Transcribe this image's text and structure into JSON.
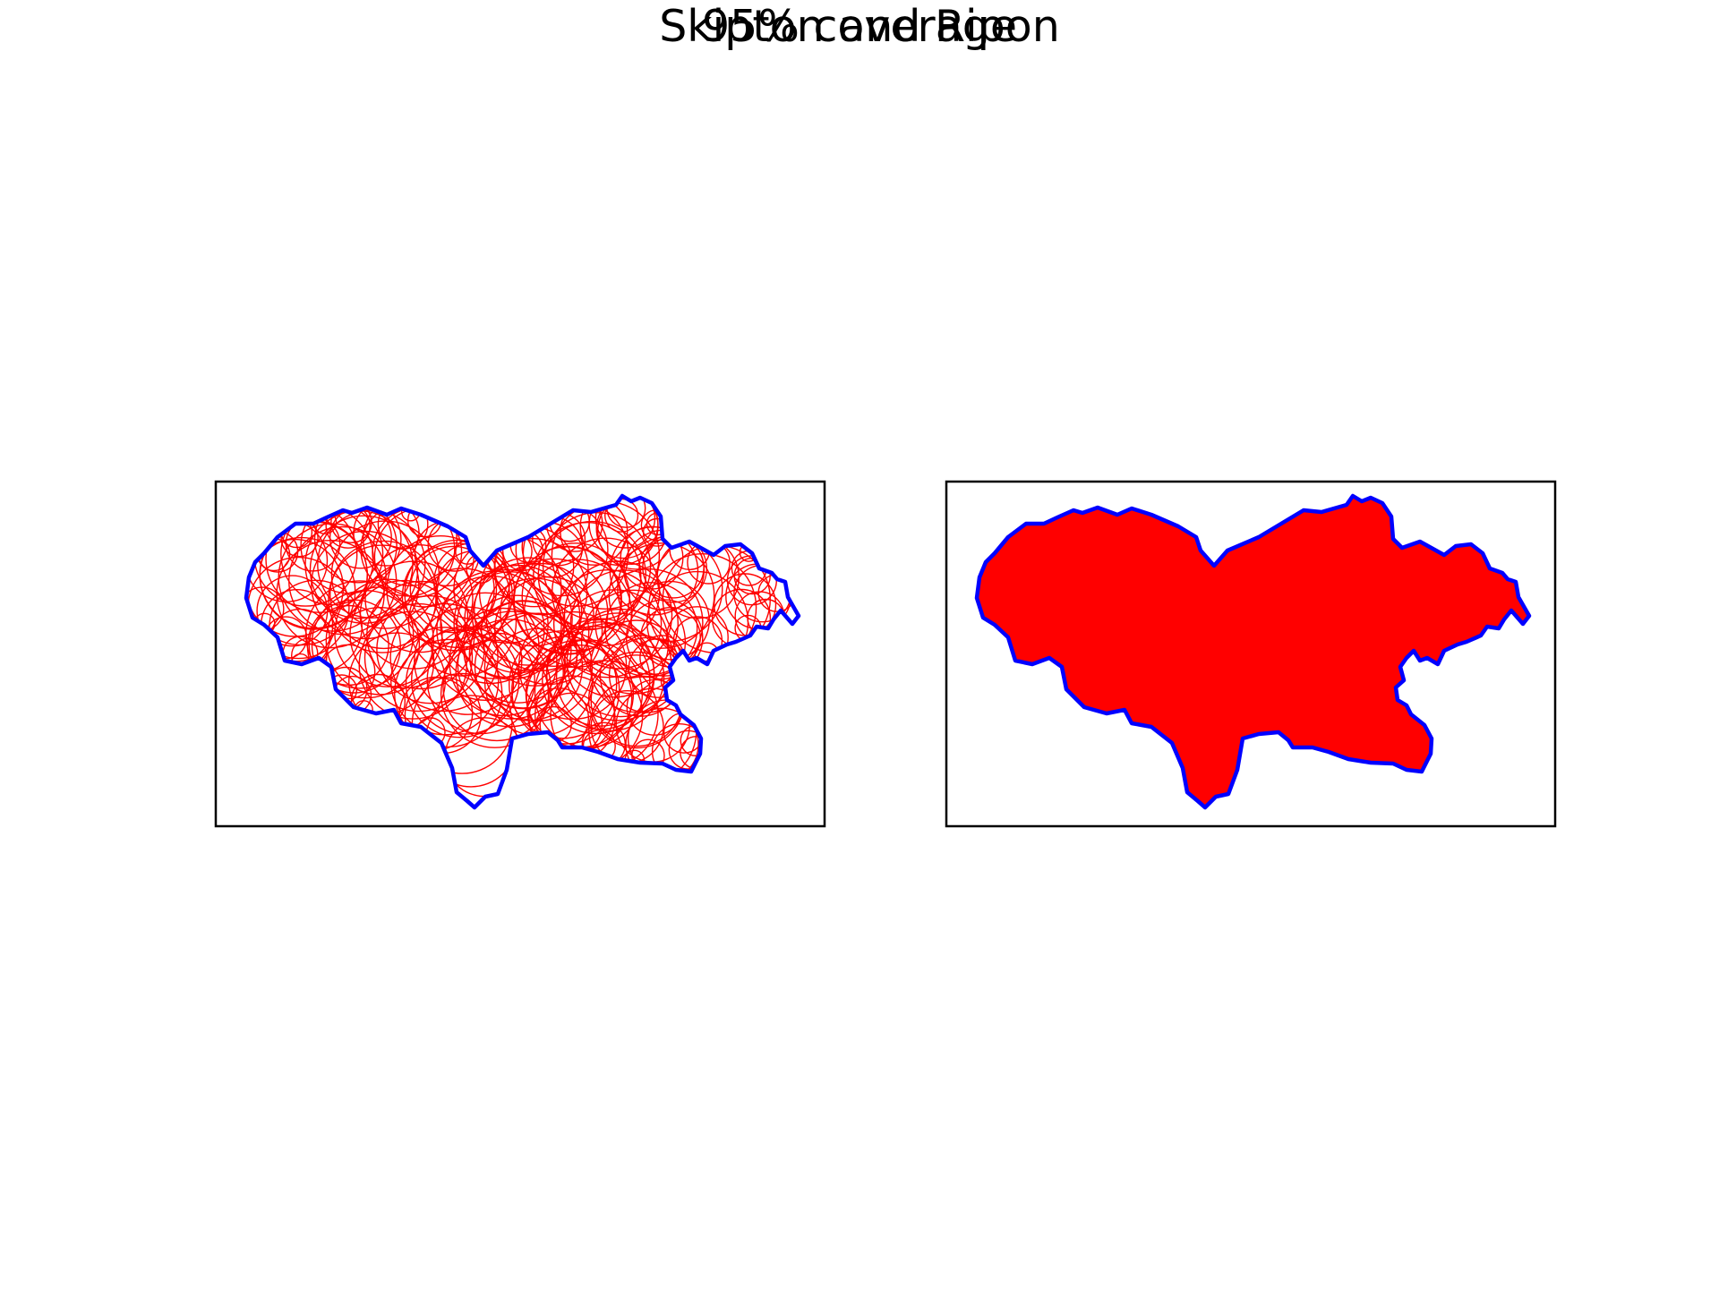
{
  "figure": {
    "title": "Skipton and Ripon",
    "subtitle": "95% coverage"
  },
  "colors": {
    "boundary": "#0000ff",
    "circles": "#ff0000",
    "fill": "#ff0000",
    "frame": "#000000",
    "background": "#ffffff"
  },
  "panels": [
    {
      "id": "left",
      "shows": "circle-outlines"
    },
    {
      "id": "right",
      "shows": "filled-coverage"
    }
  ]
}
